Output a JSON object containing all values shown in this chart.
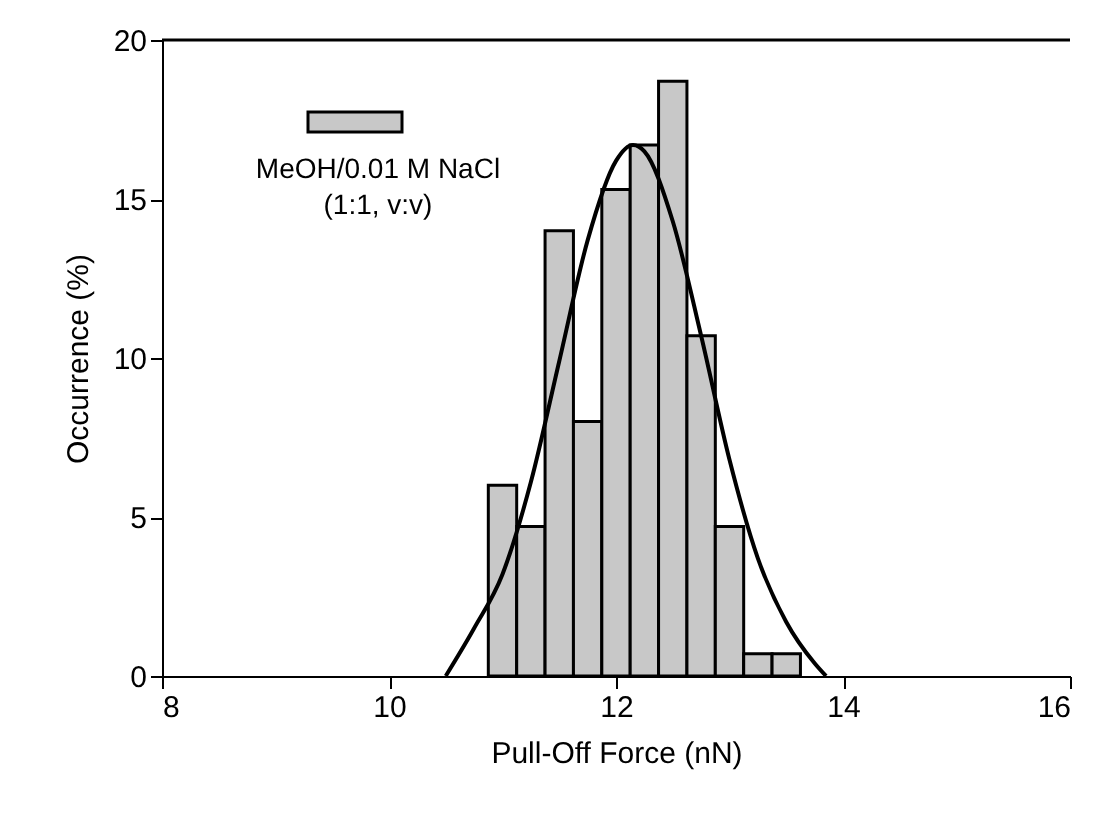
{
  "chart_data": {
    "type": "histogram",
    "xlabel": "Pull-Off Force (nN)",
    "ylabel": "Occurrence (%)",
    "bins": [
      10.875,
      11.125,
      11.375,
      11.625,
      11.875,
      12.125,
      12.375,
      12.625,
      12.875,
      13.125,
      13.375,
      13.625
    ],
    "series": [
      {
        "name": "MeOH/0.01 M NaCl\n(1:1, v:v)",
        "color": "#c8c8c8",
        "values": [
          6.0,
          4.7,
          14.0,
          8.0,
          15.3,
          16.7,
          18.7,
          10.7,
          4.7,
          0.7,
          0.7
        ]
      },
      {
        "type": "line",
        "color": "#000000",
        "x": [
          10.5,
          10.75,
          11.0,
          11.25,
          11.5,
          11.75,
          12.0,
          12.15,
          12.25,
          12.5,
          12.75,
          13.0,
          13.25,
          13.5,
          13.75,
          13.85
        ],
        "values": [
          0.0,
          1.5,
          3.2,
          6.1,
          9.9,
          13.7,
          16.2,
          16.7,
          16.5,
          14.3,
          10.7,
          6.8,
          3.7,
          1.7,
          0.4,
          0.0
        ]
      }
    ],
    "xlim": [
      8,
      16
    ],
    "xticks": [
      8,
      10,
      12,
      14,
      16
    ],
    "ylim": [
      0,
      20
    ],
    "yticks": [
      0,
      5,
      10,
      15,
      20
    ],
    "legend": "top left",
    "grid": false,
    "marker": "none",
    "line_style": "solid"
  }
}
